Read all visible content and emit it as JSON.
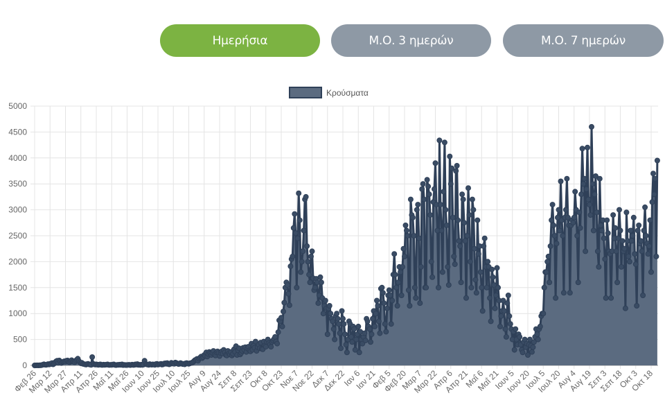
{
  "buttons": {
    "daily": "Ημερήσια",
    "avg3": "Μ.Ο. 3 ημερών",
    "avg7": "Μ.Ο. 7 ημερών",
    "active": "daily"
  },
  "colors": {
    "active_button": "#7cb342",
    "inactive_button": "#8e99a5",
    "line": "#2f4058",
    "fill": "#5b6b80"
  },
  "chart_data": {
    "type": "area",
    "legend": [
      "Κρούσματα"
    ],
    "legend_position": "top",
    "series": [
      {
        "name": "Κρούσματα"
      }
    ],
    "x_start": "2020-02-26",
    "x_interval": "daily",
    "x_tick_labels": [
      "Φεβ 26",
      "Μαρ 12",
      "Μαρ 27",
      "Απρ 11",
      "Απρ 26",
      "Μαΐ 11",
      "Μαΐ 26",
      "Ιουν 10",
      "Ιουν 25",
      "Ιουλ 10",
      "Ιουλ 25",
      "Αυγ 9",
      "Αυγ 24",
      "Σεπ 8",
      "Σεπ 23",
      "Οκτ 8",
      "Οκτ 23",
      "Νοε 7",
      "Νοε 22",
      "Δεκ 7",
      "Δεκ 22",
      "Ιαν 6",
      "Ιαν 21",
      "Φεβ 5",
      "Φεβ 20",
      "Μαρ 7",
      "Μαρ 22",
      "Απρ 6",
      "Απρ 21",
      "Μαΐ 6",
      "Μαΐ 21",
      "Ιουν 5",
      "Ιουν 20",
      "Ιουλ 5",
      "Ιουλ 20",
      "Αυγ 4",
      "Αυγ 19",
      "Σεπ 3",
      "Σεπ 18",
      "Οκτ 3",
      "Οκτ 18"
    ],
    "y_ticks": [
      0,
      500,
      1000,
      1500,
      2000,
      2500,
      3000,
      3500,
      4000,
      4500,
      5000
    ],
    "ylim": [
      0,
      5000
    ],
    "grid": true,
    "values": [
      0,
      0,
      1,
      2,
      0,
      3,
      2,
      7,
      14,
      21,
      13,
      10,
      15,
      25,
      17,
      30,
      25,
      45,
      20,
      35,
      60,
      80,
      90,
      50,
      95,
      70,
      45,
      65,
      70,
      80,
      70,
      90,
      95,
      70,
      60,
      80,
      100,
      75,
      70,
      60,
      90,
      110,
      130,
      85,
      60,
      40,
      50,
      30,
      25,
      20,
      15,
      25,
      30,
      20,
      15,
      10,
      160,
      30,
      20,
      15,
      20,
      15,
      10,
      15,
      20,
      10,
      8,
      15,
      10,
      12,
      15,
      20,
      10,
      8,
      12,
      10,
      15,
      20,
      10,
      5,
      8,
      12,
      10,
      15,
      10,
      20,
      5,
      10,
      8,
      6,
      8,
      10,
      12,
      5,
      10,
      15,
      8,
      10,
      20,
      15,
      25,
      10,
      12,
      8,
      15,
      10,
      15,
      90,
      30,
      20,
      15,
      10,
      25,
      18,
      12,
      20,
      15,
      10,
      25,
      30,
      15,
      20,
      25,
      30,
      15,
      20,
      35,
      40,
      30,
      45,
      25,
      20,
      30,
      50,
      35,
      40,
      30,
      55,
      45,
      35,
      25,
      30,
      45,
      35,
      25,
      30,
      20,
      40,
      45,
      35,
      30,
      40,
      45,
      50,
      60,
      80,
      100,
      110,
      125,
      90,
      130,
      150,
      170,
      140,
      160,
      200,
      180,
      250,
      170,
      220,
      260,
      230,
      200,
      240,
      280,
      210,
      190,
      250,
      270,
      240,
      180,
      240,
      270,
      230,
      300,
      250,
      200,
      190,
      280,
      230,
      210,
      260,
      190,
      220,
      310,
      260,
      370,
      200,
      290,
      330,
      210,
      240,
      280,
      340,
      300,
      350,
      260,
      330,
      360,
      290,
      270,
      420,
      300,
      380,
      340,
      460,
      280,
      350,
      400,
      330,
      440,
      320,
      310,
      460,
      380,
      360,
      450,
      500,
      430,
      400,
      360,
      450,
      480,
      510,
      550,
      460,
      420,
      640,
      870,
      850,
      920,
      750,
      1040,
      1210,
      1500,
      1600,
      1550,
      1380,
      1160,
      1910,
      2050,
      2100,
      2650,
      2920,
      2550,
      1500,
      2450,
      3320,
      2800,
      1800,
      2000,
      2200,
      2600,
      3200,
      3250,
      2300,
      2000,
      1750,
      1600,
      2100,
      2200,
      1680,
      1450,
      1500,
      1670,
      1600,
      1200,
      1350,
      1700,
      1600,
      1300,
      1000,
      1150,
      1250,
      1100,
      600,
      1100,
      1150,
      1000,
      900,
      850,
      700,
      500,
      950,
      1000,
      900,
      800,
      620,
      330,
      1050,
      900,
      800,
      600,
      400,
      250,
      500,
      850,
      800,
      550,
      450,
      750,
      700,
      300,
      500,
      600,
      750,
      250,
      650,
      500,
      420,
      550,
      620,
      480,
      900,
      850,
      750,
      700,
      450,
      600,
      900,
      1050,
      750,
      1000,
      1250,
      1150,
      850,
      620,
      1480,
      1500,
      1400,
      1200,
      800,
      650,
      1100,
      1350,
      1450,
      1350,
      800,
      1250,
      1750,
      2150,
      1750,
      1500,
      1150,
      1600,
      1900,
      1800,
      1350,
      1900,
      2250,
      2100,
      2700,
      2600,
      2500,
      1450,
      1150,
      3200,
      2900,
      2850,
      2500,
      1500,
      1300,
      3000,
      3100,
      2450,
      1200,
      1900,
      3400,
      3500,
      3200,
      1500,
      1500,
      3580,
      3450,
      3300,
      2900,
      2000,
      1700,
      3150,
      3400,
      3900,
      3100,
      2600,
      1500,
      4340,
      3100,
      2600,
      1800,
      3350,
      4300,
      3000,
      2700,
      1900,
      1550,
      4030,
      3500,
      3800,
      2850,
      2100,
      1950,
      3750,
      3850,
      2800,
      2400,
      2300,
      1600,
      3300,
      3200,
      2750,
      2400,
      1300,
      2500,
      3420,
      2900,
      2000,
      1500,
      3200,
      3000,
      2250,
      1650,
      1400,
      2800,
      2150,
      2300,
      1800,
      1500,
      1050,
      2300,
      2450,
      1900,
      1500,
      2000,
      1900,
      1300,
      850,
      1850,
      1700,
      1550,
      1100,
      1350,
      1880,
      1500,
      1250,
      750,
      950,
      1050,
      1250,
      1050,
      700,
      550,
      1200,
      1350,
      950,
      800,
      700,
      500,
      650,
      300,
      700,
      500,
      400,
      600,
      550,
      400,
      300,
      250,
      450,
      500,
      350,
      420,
      200,
      400,
      500,
      380,
      260,
      350,
      450,
      550,
      700,
      600,
      500,
      700,
      750,
      950,
      1000,
      1000,
      1500,
      1800,
      1800,
      2000,
      2100,
      1600,
      2300,
      2800,
      3100,
      2700,
      2500,
      1300,
      2350,
      2850,
      3000,
      2600,
      3550,
      2800,
      2500,
      1400,
      2850,
      3000,
      3600,
      2850,
      2700,
      1400,
      2700,
      2800,
      2750,
      2850,
      3350,
      3000,
      2500,
      1600,
      2950,
      2650,
      3300,
      4180,
      3500,
      3600,
      2200,
      3400,
      4200,
      3200,
      3100,
      2900,
      4600,
      3500,
      2600,
      3300,
      3650,
      2950,
      2200,
      1900,
      3600,
      2700,
      2600,
      2800,
      2450,
      2050,
      1300,
      2800,
      2550,
      2200,
      2150,
      1300,
      2200,
      2900,
      2450,
      2650,
      2200,
      1600,
      2450,
      3000,
      2600,
      1900,
      2400,
      2200,
      2250,
      1100,
      2950,
      2400,
      2100,
      2000,
      2600,
      2400,
      2500,
      2850,
      2150,
      1950,
      1150,
      2600,
      2700,
      2350,
      2400,
      2200,
      1350,
      2600,
      3050,
      2500,
      2350,
      2150,
      2300,
      2800,
      1800,
      3150,
      3700,
      3300,
      3600,
      2100,
      3950
    ]
  }
}
